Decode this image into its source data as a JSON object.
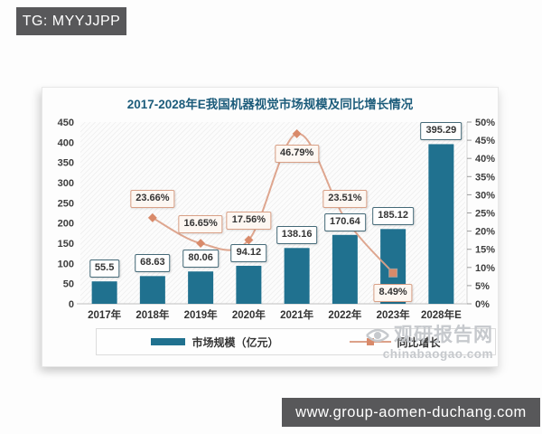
{
  "badges": {
    "top_left": "TG: MYYJJPP",
    "bottom_right": "www.group-aomen-duchang.com"
  },
  "watermark": {
    "name": "观研报告网",
    "domain": "chinabaogao.com"
  },
  "colors": {
    "bar": "#20718f",
    "line": "#dca189",
    "marker": "#d98a6a",
    "title": "#1c5c7b",
    "badge_bg": "#58585a",
    "value_box_border": "#456a78",
    "pct_box_border": "#d9a086"
  },
  "chart_data": {
    "type": "bar",
    "subtype": "bar+line-combo",
    "title": "2017-2028年E我国机器视觉市场规模及同比增长情况",
    "categories": [
      "2017年",
      "2018年",
      "2019年",
      "2020年",
      "2021年",
      "2022年",
      "2023年",
      "2028年E"
    ],
    "series": [
      {
        "name": "市场规模（亿元）",
        "type": "bar",
        "axis": "left",
        "values": [
          55.5,
          68.63,
          80.06,
          94.12,
          138.16,
          170.64,
          185.12,
          395.29
        ],
        "labels": [
          "55.5",
          "68.63",
          "80.06",
          "94.12",
          "138.16",
          "170.64",
          "185.12",
          "395.29"
        ]
      },
      {
        "name": "同比增长",
        "type": "line",
        "axis": "right",
        "values": [
          null,
          23.66,
          16.65,
          17.56,
          46.79,
          23.51,
          8.49,
          null
        ],
        "labels": [
          "",
          "23.66%",
          "16.65%",
          "17.56%",
          "46.79%",
          "23.51%",
          "8.49%",
          ""
        ],
        "label_pos": [
          null,
          "above",
          "above",
          "above",
          "below",
          "above",
          "below",
          null
        ]
      }
    ],
    "left_axis": {
      "min": 0,
      "max": 450,
      "step": 50,
      "suffix": ""
    },
    "right_axis": {
      "min": 0,
      "max": 50,
      "step": 5,
      "suffix": "%"
    },
    "grid": "diagonal-hatch-background",
    "legend_position": "bottom"
  }
}
